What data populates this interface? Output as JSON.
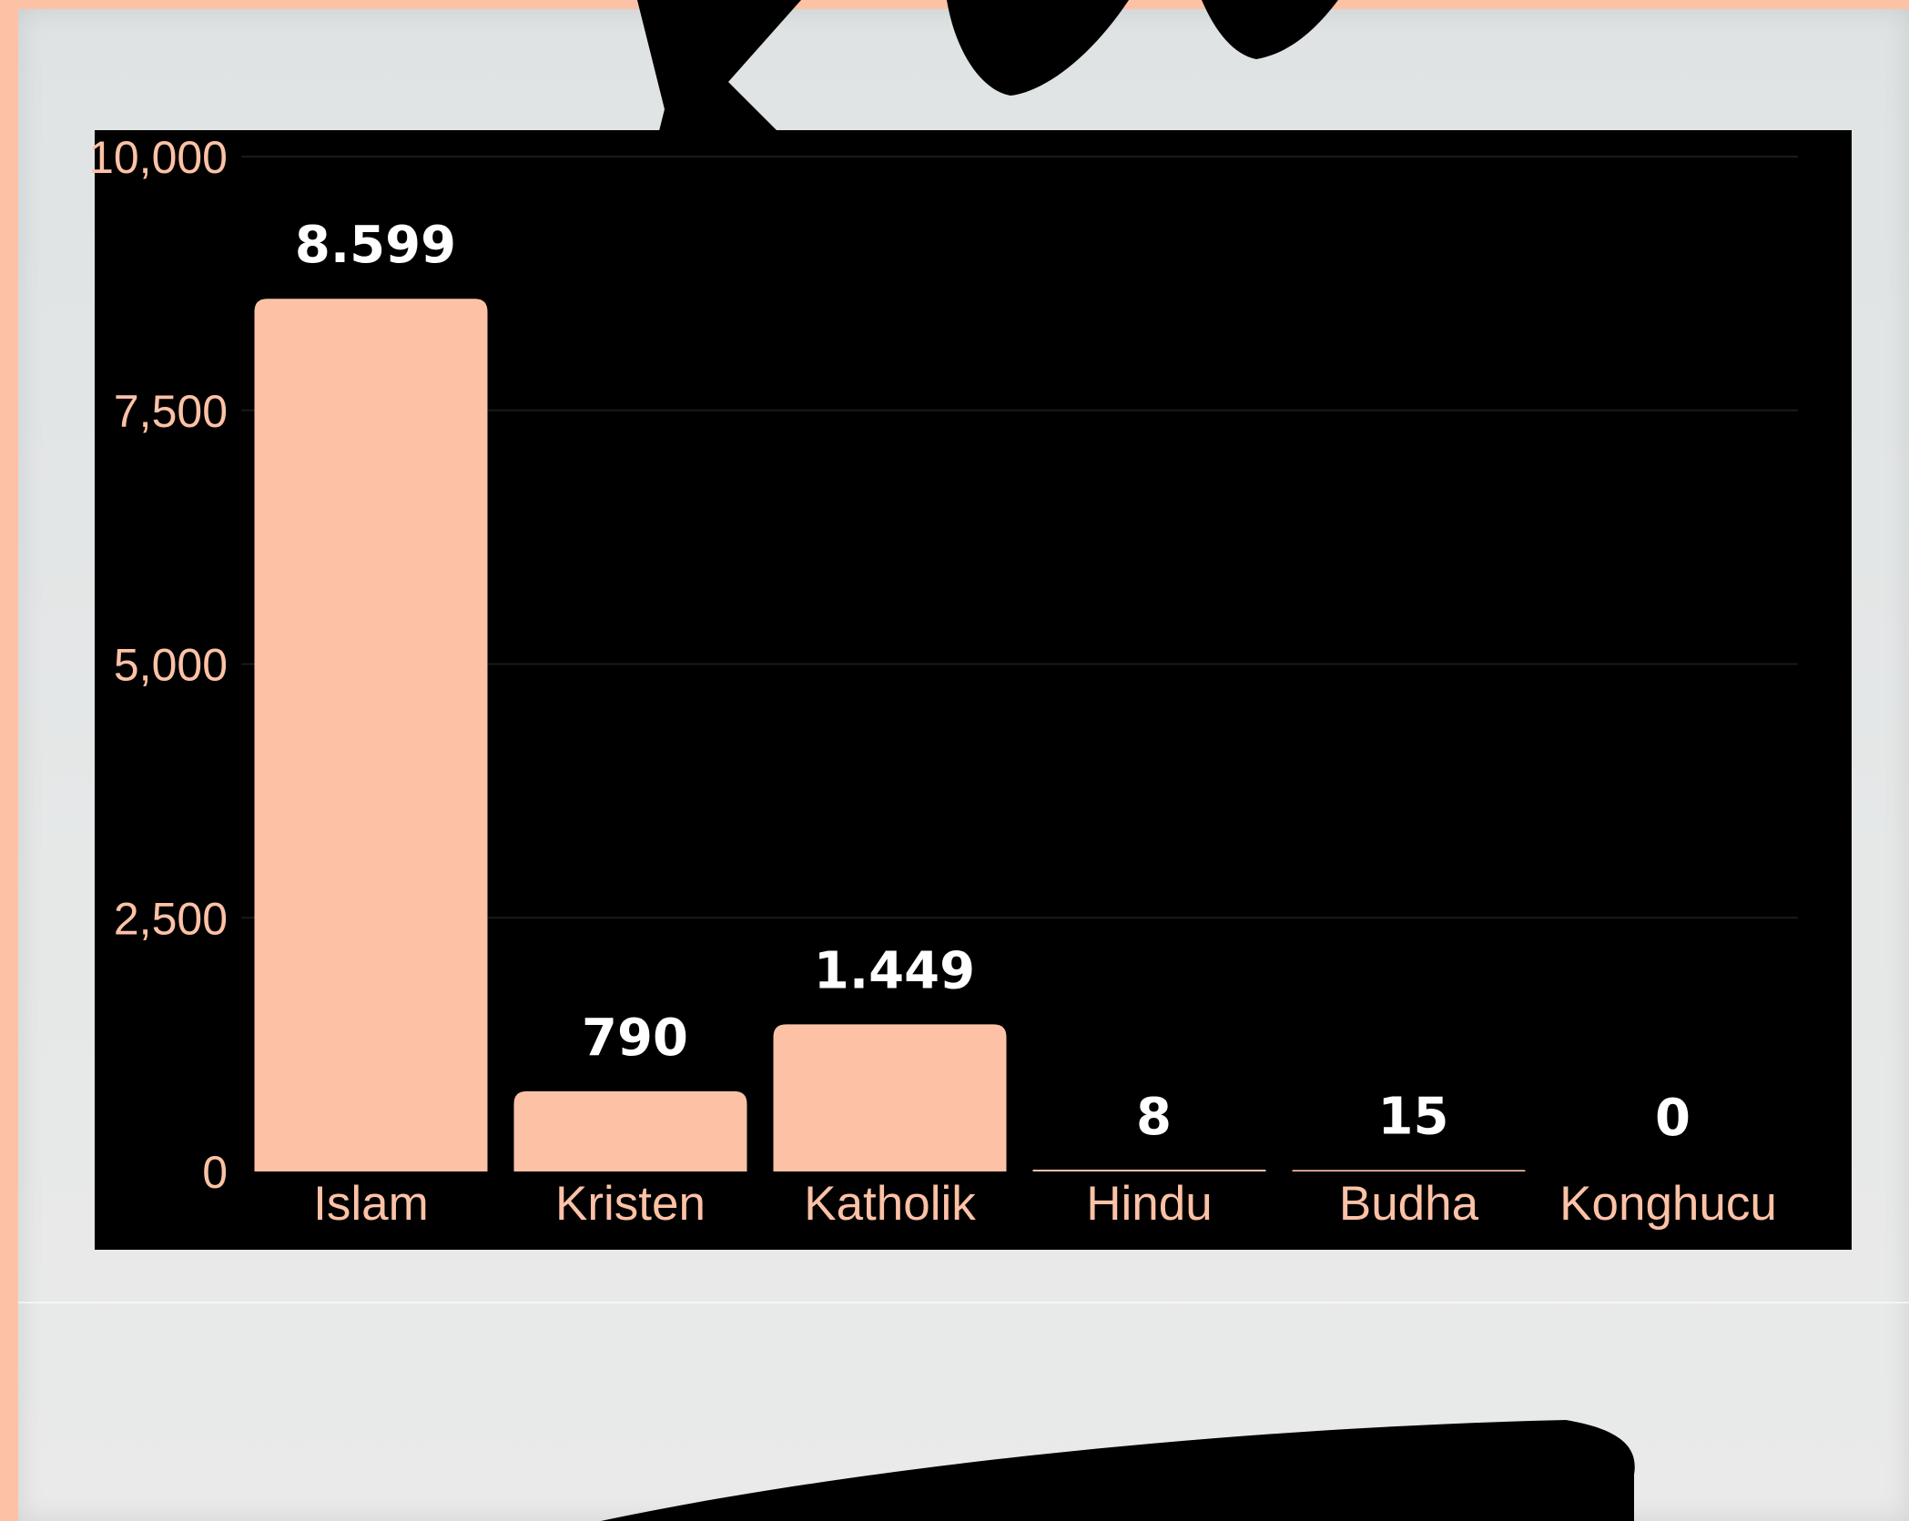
{
  "chart_data": {
    "type": "bar",
    "categories": [
      "Islam",
      "Kristen",
      "Katholik",
      "Hindu",
      "Budha",
      "Konghucu"
    ],
    "values": [
      8599,
      790,
      1449,
      8,
      15,
      0
    ],
    "value_labels": [
      "8.599",
      "790",
      "1.449",
      "8",
      "15",
      "0"
    ],
    "y_ticks": [
      {
        "value": 0,
        "label": "0"
      },
      {
        "value": 2500,
        "label": "2,500"
      },
      {
        "value": 5000,
        "label": "5,000"
      },
      {
        "value": 7500,
        "label": "7,500"
      },
      {
        "value": 10000,
        "label": "10,000"
      }
    ],
    "ylim": [
      0,
      10000
    ],
    "grid": true,
    "legend": "none",
    "title": "",
    "xlabel": "",
    "ylabel": ""
  },
  "colors": {
    "bar": "#fdc2a6",
    "plot_background": "#000000",
    "value_text": "#ffffff",
    "axis_text": "#fdc2a6",
    "frame": "#e2e5e5",
    "border": "#fdc2a6"
  }
}
